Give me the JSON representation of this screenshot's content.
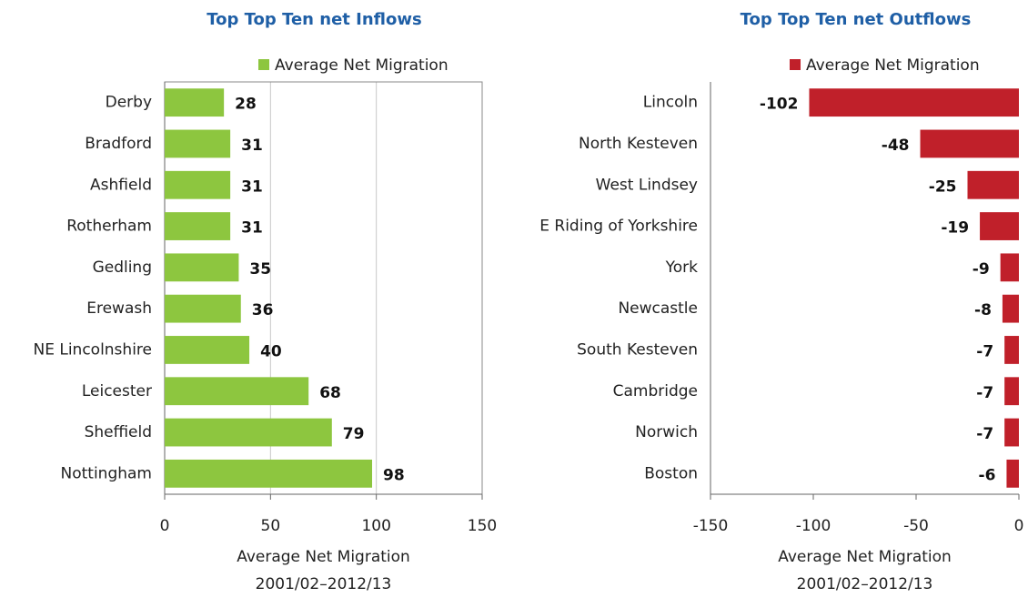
{
  "chart_data": [
    {
      "type": "bar",
      "orientation": "horizontal",
      "title": "Top Top Ten net Inflows",
      "categories": [
        "Derby",
        "Bradford",
        "Ashfield",
        "Rotherham",
        "Gedling",
        "Erewash",
        "NE Lincolnshire",
        "Leicester",
        "Sheffield",
        "Nottingham"
      ],
      "series": [
        {
          "name": "Average Net Migration",
          "color": "#8dc63f",
          "values": [
            28,
            31,
            31,
            31,
            35,
            36,
            40,
            68,
            79,
            98
          ]
        }
      ],
      "xlim": [
        0,
        150
      ],
      "xticks": [
        0,
        50,
        100,
        150
      ],
      "grid": true,
      "x_label": [
        "Average Net Migration",
        "2001/02–2012/13"
      ]
    },
    {
      "type": "bar",
      "orientation": "horizontal",
      "title": "Top Top Ten net Outflows",
      "categories": [
        "Lincoln",
        "North Kesteven",
        "West Lindsey",
        "E Riding of Yorkshire",
        "York",
        "Newcastle",
        "South Kesteven",
        "Cambridge",
        "Norwich",
        "Boston"
      ],
      "series": [
        {
          "name": "Average Net Migration",
          "color": "#c0202a",
          "values": [
            -102,
            -48,
            -25,
            -19,
            -9,
            -8,
            -7,
            -7,
            -7,
            -6
          ]
        }
      ],
      "xlim": [
        -150,
        0
      ],
      "xticks": [
        -150,
        -100,
        -50,
        0
      ],
      "grid": false,
      "x_label": [
        "Average Net Migration",
        "2001/02–2012/13"
      ]
    }
  ]
}
